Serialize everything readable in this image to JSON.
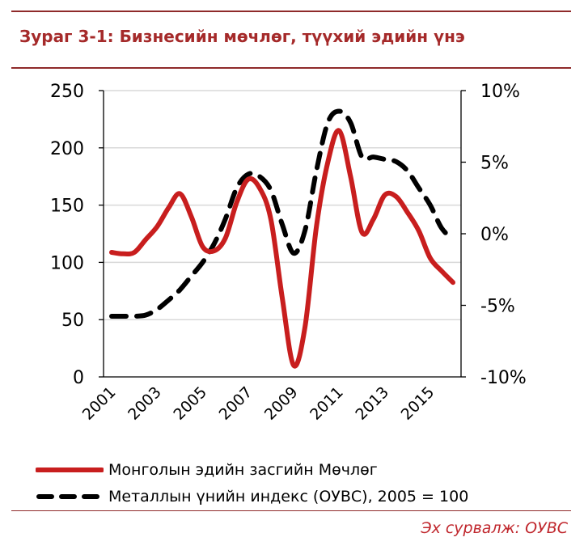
{
  "chart_data": {
    "type": "line",
    "title": "Зураг 3-1: Бизнесийн мөчлөг, түүхий эдийн үнэ",
    "xlabel": "",
    "ylabel": "",
    "y_left_range": [
      0,
      250
    ],
    "y_left_ticks": [
      "0",
      "50",
      "100",
      "150",
      "200",
      "250"
    ],
    "y_right_range": [
      -10,
      10
    ],
    "y_right_ticks": [
      "-10%",
      "-5%",
      "0%",
      "5%",
      "10%"
    ],
    "x_ticks": [
      "2001",
      "2003",
      "2005",
      "2007",
      "2009",
      "2011",
      "2013",
      "2015"
    ],
    "x_range": [
      2001,
      2016
    ],
    "grid": "horizontal-left-axis",
    "legend_position": "bottom",
    "series": [
      {
        "name": "Монголын эдийн засгийн Мөчлөг",
        "axis": "right",
        "color": "#c81e1e",
        "style": "solid",
        "x": [
          2001.0,
          2001.5,
          2002.0,
          2002.5,
          2003.0,
          2003.5,
          2004.0,
          2004.5,
          2005.0,
          2005.5,
          2006.0,
          2006.5,
          2007.0,
          2007.5,
          2008.0,
          2008.5,
          2009.0,
          2009.5,
          2010.0,
          2010.5,
          2011.0,
          2011.5,
          2012.0,
          2012.5,
          2013.0,
          2013.5,
          2014.0,
          2014.5,
          2015.0,
          2015.5,
          2016.0
        ],
        "y": [
          -1.3,
          -1.4,
          -1.3,
          -0.4,
          0.5,
          1.8,
          2.8,
          1.2,
          -0.9,
          -1.2,
          -0.3,
          2.2,
          3.8,
          3.2,
          1.0,
          -4.5,
          -9.2,
          -6.5,
          0.5,
          5.0,
          7.2,
          4.0,
          0.1,
          1.0,
          2.7,
          2.6,
          1.5,
          0.2,
          -1.7,
          -2.6,
          -3.4
        ]
      },
      {
        "name": "Металлын үнийн индекс (ОУВС), 2005 = 100",
        "axis": "left",
        "color": "#000000",
        "style": "dashed",
        "x": [
          2001.0,
          2001.5,
          2002.0,
          2002.5,
          2003.0,
          2003.5,
          2004.0,
          2004.5,
          2005.0,
          2005.5,
          2006.0,
          2006.5,
          2007.0,
          2007.5,
          2008.0,
          2008.5,
          2009.0,
          2009.5,
          2010.0,
          2010.5,
          2011.0,
          2011.5,
          2012.0,
          2012.5,
          2013.0,
          2013.5,
          2014.0,
          2014.5,
          2015.0,
          2015.5,
          2016.0
        ],
        "y": [
          53,
          53,
          53,
          54,
          59,
          67,
          76,
          88,
          100,
          116,
          138,
          165,
          177,
          175,
          163,
          133,
          108,
          128,
          180,
          222,
          232,
          222,
          192,
          192,
          190,
          188,
          180,
          165,
          150,
          130,
          120
        ]
      }
    ]
  },
  "legend": [
    {
      "label": "Монголын эдийн засгийн Мөчлөг"
    },
    {
      "label": "Металлын үнийн индекс (ОУВС), 2005 = 100"
    }
  ],
  "source_note": "Эх сурвалж: ОУВС",
  "colors": {
    "accent": "#a52a2a",
    "cycle_line": "#c81e1e",
    "price_line": "#000000",
    "gridline": "#d9d9d9"
  }
}
